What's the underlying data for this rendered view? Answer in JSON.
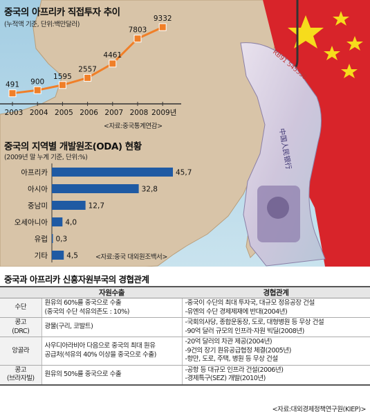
{
  "chart_data": [
    {
      "type": "line",
      "title": "중국의 아프리카 직접투자 추이",
      "subtitle": "(누적액 기준, 단위:백만달러)",
      "source": "<자료:중국통계연감>",
      "x": [
        "2003",
        "2004",
        "2005",
        "2006",
        "2007",
        "2008",
        "2009년"
      ],
      "values": [
        491,
        900,
        1595,
        2557,
        4461,
        7803,
        9332
      ],
      "value_labels": [
        "491",
        "900",
        "1595",
        "2557",
        "4461",
        "7803",
        "9332"
      ],
      "ylim": [
        0,
        10000
      ],
      "grid": false,
      "color": "#f07f28"
    },
    {
      "type": "bar",
      "orientation": "horizontal",
      "title": "중국의 지역별 개발원조(ODA) 현황",
      "subtitle": "(2009년 말 누계 기준, 단위:%)",
      "source": "<자료:중국 대외원조백서>",
      "categories": [
        "아프리카",
        "아시아",
        "중남미",
        "오세아니아",
        "유럽",
        "기타"
      ],
      "values": [
        45.7,
        32.8,
        12.7,
        4.0,
        0.3,
        4.5
      ],
      "value_labels": [
        "45,7",
        "32,8",
        "12,7",
        "4,0",
        "0,3",
        "4,5"
      ],
      "xlim": [
        0,
        50
      ],
      "grid": false,
      "color": "#1f5aa3"
    }
  ],
  "table": {
    "title": "중국과 아프리카 신흥자원부국의 경협관계",
    "headers": [
      "",
      "자원수출",
      "경협관계"
    ],
    "rows": [
      {
        "country": [
          "수단"
        ],
        "resource": [
          "원유의 60%를 중국으로 수출",
          "(중국의 수단 석유의존도 : 10%)"
        ],
        "relation": [
          "-중국이 수단의 최대 투자국, 대규모 정유공장 건설",
          "-유엔의 수단 경제제재에 반대(2004년)"
        ]
      },
      {
        "country": [
          "콩고",
          "(DRC)"
        ],
        "resource": [
          "광물(구리, 코발트)"
        ],
        "relation": [
          "-국회의사당, 종합운동장, 도로, 대형병원 등 무상 건설",
          "-90억 달러 규모의 인프라·자원 빅딜(2008년)"
        ]
      },
      {
        "country": [
          "앙골라"
        ],
        "resource": [
          "사우디아라비아 다음으로 중국의 최대 원유",
          "공급처(석유의 40% 이상을 중국으로 수출)"
        ],
        "relation": [
          "-20억 달러의 차관 제공(2004년)",
          "-9건의 장기 원유공급협정 체결(2005년)",
          "-항만, 도로, 주택, 병원 등 무상 건설"
        ]
      },
      {
        "country": [
          "콩고",
          "(브라자빌)"
        ],
        "resource": [
          "원유의 50%를 중국으로 수출"
        ],
        "relation": [
          "-공항 등 대규모 인프라 건설(2006년)",
          "-경제특구(SEZ) 개발(2010년)"
        ]
      }
    ],
    "source": "<자료:대외경제정책연구원(KIEP)>"
  },
  "banknote": {
    "serial": "RB91 545538",
    "bank_text": "中国人民银行"
  },
  "colors": {
    "sea_top": "#a3cde3",
    "sea_bottom": "#c9e3ee",
    "land": "#d8c4a8",
    "flag_red": "#d8242a",
    "flag_star": "#f6dc1c",
    "line_color": "#f07f28",
    "bar_color": "#1f5aa3"
  }
}
